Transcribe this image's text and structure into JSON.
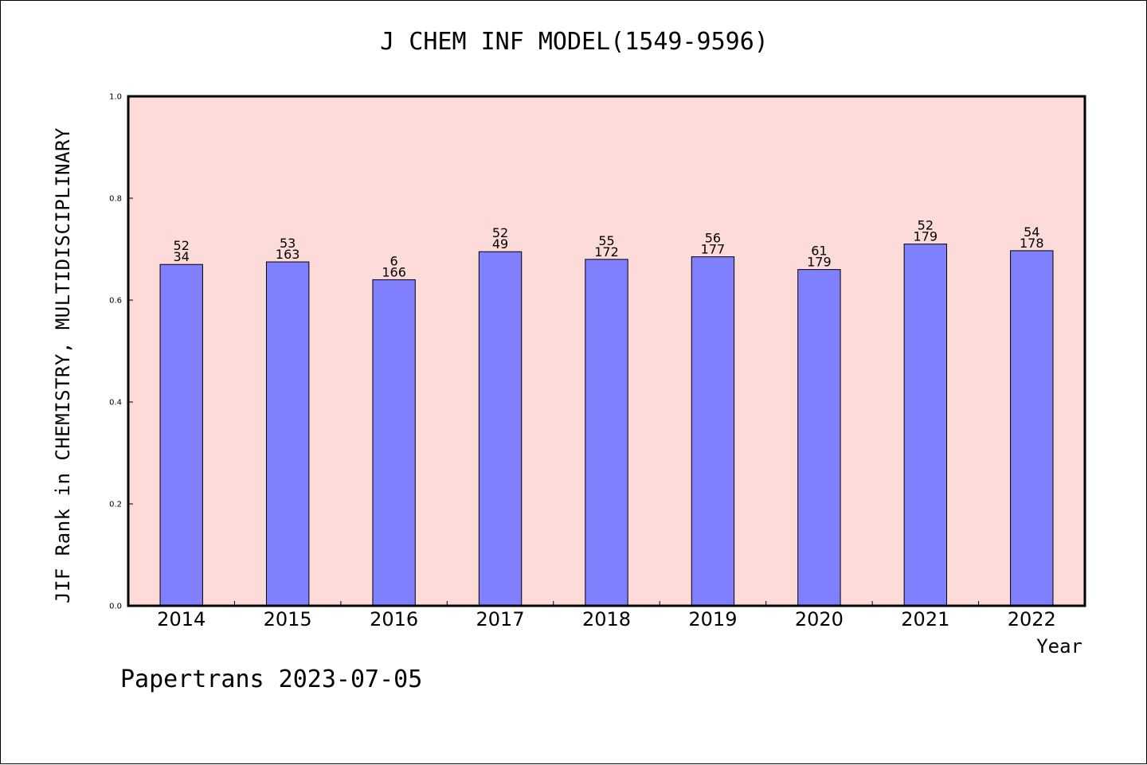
{
  "footer_note": "Papertrans 2023-07-05",
  "chart_data": {
    "type": "bar",
    "title": "J CHEM INF MODEL(1549-9596)",
    "xlabel": "Year",
    "ylabel": "JIF Rank in CHEMISTRY, MULTIDISCIPLINARY",
    "ylim": [
      0,
      1.0
    ],
    "yticks": [
      "0.0",
      "0.2",
      "0.4",
      "0.6",
      "0.8",
      "1.0"
    ],
    "grid": false,
    "categories": [
      "2014",
      "2015",
      "2016",
      "2017",
      "2018",
      "2019",
      "2020",
      "2021",
      "2022"
    ],
    "values": [
      0.67,
      0.675,
      0.64,
      0.695,
      0.68,
      0.685,
      0.66,
      0.71,
      0.697
    ],
    "bar_labels": [
      [
        "52",
        "34"
      ],
      [
        "53",
        "163"
      ],
      [
        "6",
        "166"
      ],
      [
        "52",
        "49"
      ],
      [
        "55",
        "172"
      ],
      [
        "56",
        "177"
      ],
      [
        "61",
        "179"
      ],
      [
        "52",
        "179"
      ],
      [
        "54",
        "178"
      ]
    ],
    "colors": {
      "plot_background": "#fddbd8",
      "bar_fill": "#8080ff",
      "bar_stroke": "#000000"
    }
  }
}
